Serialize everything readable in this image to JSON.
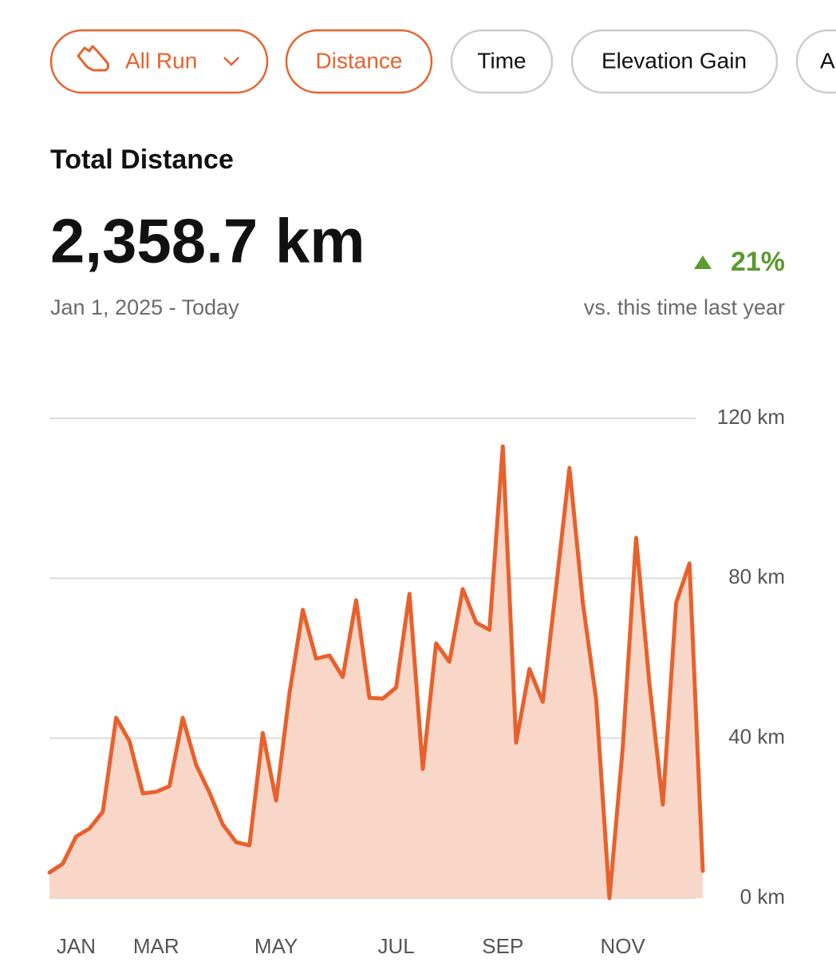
{
  "filters": {
    "sport": "All Run",
    "metrics": [
      "Distance",
      "Time",
      "Elevation Gain",
      "A"
    ]
  },
  "summary": {
    "title": "Total Distance",
    "total": "2,358.7 km",
    "period": "Jan 1, 2025 - Today",
    "change": "21%",
    "change_note": "vs. this time last year"
  },
  "chart_data": {
    "type": "area",
    "categories": [
      null,
      null,
      "JAN",
      null,
      null,
      null,
      null,
      null,
      "MAR",
      null,
      null,
      null,
      null,
      null,
      null,
      null,
      null,
      "MAY",
      null,
      null,
      null,
      null,
      null,
      null,
      null,
      null,
      "JUL",
      null,
      null,
      null,
      null,
      null,
      null,
      null,
      "SEP",
      null,
      null,
      null,
      null,
      null,
      null,
      null,
      null,
      "NOV",
      null,
      null,
      null,
      null,
      null,
      null
    ],
    "values": [
      6.4,
      8.6,
      15.4,
      17.4,
      21.6,
      45.1,
      39.3,
      26.2,
      26.6,
      28,
      45.1,
      33.3,
      26.4,
      18.4,
      14,
      13.2,
      41.3,
      24.4,
      51.3,
      72.1,
      59.9,
      60.7,
      55.3,
      74.5,
      50.1,
      49.9,
      52.7,
      76.1,
      32.3,
      63.7,
      59.1,
      77.3,
      68.9,
      67.1,
      113,
      38.9,
      57.3,
      49.1,
      77.7,
      107.6,
      73.9,
      49.7,
      0,
      37.7,
      90.1,
      53.7,
      23.4,
      73.9,
      83.7,
      6.8
    ],
    "color": "#e8612c",
    "fill_color": "#f8d5c5",
    "ylim": [
      0,
      120
    ],
    "yticks": [
      {
        "value": 0,
        "label": "0 km"
      },
      {
        "value": 40,
        "label": "40 km"
      },
      {
        "value": 80,
        "label": "80 km"
      },
      {
        "value": 120,
        "label": "120 km"
      }
    ],
    "grid": true
  }
}
